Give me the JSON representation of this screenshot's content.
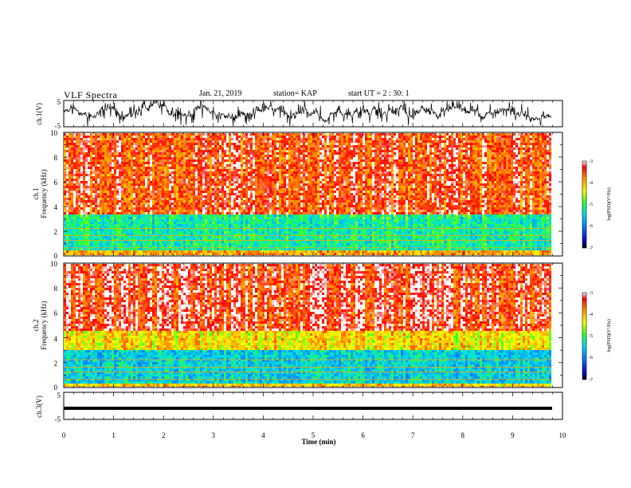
{
  "header": {
    "title": "VLF Spectra",
    "date": "Jan. 21, 2019",
    "station": "station= KAP",
    "start": "start  UT =  2 : 30: 1"
  },
  "chart_data": [
    {
      "type": "line",
      "panel": "ch1-waveform",
      "ylabel": "ch.1(V)",
      "ylim": [
        -5,
        5
      ],
      "yticks": [
        "5",
        "-5"
      ],
      "xlim": [
        0,
        10
      ],
      "series": [
        {
          "values_description_free": true,
          "mean": 0,
          "amplitude_range": [
            -4,
            4
          ]
        }
      ]
    },
    {
      "type": "heatmap",
      "panel": "ch1-spectrogram",
      "ylabel_top": "ch.1",
      "ylabel": "Frequency (kHz)",
      "ylim": [
        0,
        10
      ],
      "yticks": [
        "0",
        "2",
        "4",
        "6",
        "8",
        "10"
      ],
      "xlim": [
        0,
        9.8
      ],
      "colorbar": {
        "label": "log(PSD)(V²/Hz)",
        "range": [
          -7,
          -3
        ],
        "ticks": [
          "-3",
          "-4",
          "-5",
          "-6",
          "-7"
        ]
      },
      "bands_log_psd": [
        {
          "freq": [
            0,
            0.4
          ],
          "value": -4.0
        },
        {
          "freq": [
            0.4,
            3.3
          ],
          "value": -5.3
        },
        {
          "freq": [
            3.3,
            10
          ],
          "value": -3.6
        }
      ]
    },
    {
      "type": "heatmap",
      "panel": "ch2-spectrogram",
      "ylabel_top": "ch.2",
      "ylabel": "Frequency (kHz)",
      "ylim": [
        0,
        10
      ],
      "yticks": [
        "0",
        "2",
        "4",
        "6",
        "8",
        "10"
      ],
      "xlim": [
        0,
        9.8
      ],
      "colorbar": {
        "label": "log(PSD)(V²/Hz)",
        "range": [
          -7,
          -3
        ],
        "ticks": [
          "-3",
          "-4",
          "-5",
          "-6",
          "-7"
        ]
      },
      "bands_log_psd": [
        {
          "freq": [
            0,
            0.3
          ],
          "value": -4.2
        },
        {
          "freq": [
            0.3,
            3.0
          ],
          "value": -5.6
        },
        {
          "freq": [
            3.0,
            4.5
          ],
          "value": -4.4
        },
        {
          "freq": [
            4.5,
            10
          ],
          "value": -3.5
        }
      ]
    },
    {
      "type": "line",
      "panel": "ch3-waveform",
      "ylabel": "ch.3(V)",
      "ylim": [
        -5,
        5
      ],
      "yticks": [
        "5",
        "-5"
      ],
      "xlabel": "Time (min)",
      "xlim": [
        0,
        10
      ],
      "xticks": [
        "0",
        "1",
        "2",
        "3",
        "4",
        "5",
        "6",
        "7",
        "8",
        "9",
        "10"
      ],
      "series": [
        {
          "constant": 0
        }
      ]
    }
  ]
}
